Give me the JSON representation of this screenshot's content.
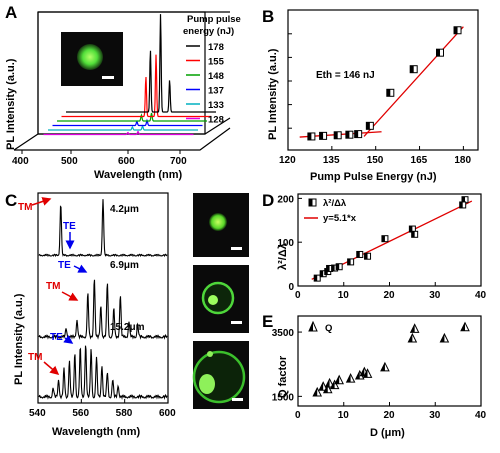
{
  "chart_data": [
    {
      "panel": "A",
      "type": "line",
      "xlabel": "Wavelength (nm)",
      "ylabel": "PL Intensity (a.u.)",
      "xlim": [
        400,
        700
      ],
      "xticks": [
        "400",
        "500",
        "600",
        "700"
      ],
      "legend_title": "Pump pulse energy (nJ)",
      "legend_placement": "top-right",
      "series": [
        {
          "name": "178",
          "color": "#000000",
          "peaks": [
            {
              "x": 592,
              "h": 0.62
            },
            {
              "x": 611,
              "h": 0.98
            },
            {
              "x": 628,
              "h": 0.32
            }
          ]
        },
        {
          "name": "155",
          "color": "#ff0000",
          "peaks": [
            {
              "x": 592,
              "h": 0.4
            },
            {
              "x": 611,
              "h": 0.62
            }
          ]
        },
        {
          "name": "148",
          "color": "#00a000",
          "peaks": [
            {
              "x": 592,
              "h": 0.06
            },
            {
              "x": 611,
              "h": 0.08
            }
          ]
        },
        {
          "name": "137",
          "color": "#0000ff",
          "peaks": [
            {
              "x": 592,
              "h": 0.04
            },
            {
              "x": 611,
              "h": 0.05
            }
          ]
        },
        {
          "name": "133",
          "color": "#00b0c0",
          "peaks": [
            {
              "x": 592,
              "h": 0.03
            },
            {
              "x": 611,
              "h": 0.04
            }
          ]
        },
        {
          "name": "128",
          "color": "#e000e0",
          "peaks": [
            {
              "x": 592,
              "h": 0.02
            },
            {
              "x": 611,
              "h": 0.03
            }
          ]
        }
      ]
    },
    {
      "panel": "B",
      "type": "scatter",
      "xlabel": "Pump Pulse Energy (nJ)",
      "ylabel": "PL Intensity (a.u.)",
      "xlim": [
        120,
        185
      ],
      "ylim": [
        0,
        1
      ],
      "xticks": [
        120,
        135,
        150,
        165,
        180
      ],
      "annotation": "Eth = 146 nJ",
      "points": [
        [
          128,
          0.03
        ],
        [
          132,
          0.035
        ],
        [
          137,
          0.04
        ],
        [
          141,
          0.045
        ],
        [
          144,
          0.05
        ],
        [
          148,
          0.12
        ],
        [
          155,
          0.4
        ],
        [
          163,
          0.6
        ],
        [
          172,
          0.74
        ],
        [
          178,
          0.93
        ]
      ],
      "fit_below": [
        [
          124,
          0.025
        ],
        [
          152,
          0.07
        ]
      ],
      "fit_above": [
        [
          146,
          0.03
        ],
        [
          180,
          0.96
        ]
      ]
    },
    {
      "panel": "C",
      "type": "line",
      "xlabel": "Wavelength (nm)",
      "ylabel": "PL Intensity (a.u.)",
      "xlim": [
        540,
        600
      ],
      "xticks": [
        540,
        560,
        580,
        600
      ],
      "series": [
        {
          "name": "4.2μm",
          "peaks": [
            {
              "x": 550.5,
              "h": 0.9
            },
            {
              "x": 570,
              "h": 0.97
            }
          ]
        },
        {
          "name": "6.9μm",
          "peaks": [
            {
              "x": 553,
              "h": 0.12
            },
            {
              "x": 558,
              "h": 0.25
            },
            {
              "x": 563,
              "h": 0.62
            },
            {
              "x": 566,
              "h": 0.85
            },
            {
              "x": 569,
              "h": 0.45
            },
            {
              "x": 572,
              "h": 0.78
            },
            {
              "x": 575,
              "h": 0.4
            },
            {
              "x": 578,
              "h": 0.6
            },
            {
              "x": 582,
              "h": 0.22
            },
            {
              "x": 586,
              "h": 0.18
            }
          ]
        },
        {
          "name": "15.2μm",
          "peaks": [
            {
              "x": 547,
              "h": 0.15
            },
            {
              "x": 549.5,
              "h": 0.3
            },
            {
              "x": 552,
              "h": 0.48
            },
            {
              "x": 554.5,
              "h": 0.62
            },
            {
              "x": 557,
              "h": 0.75
            },
            {
              "x": 559.5,
              "h": 0.85
            },
            {
              "x": 562,
              "h": 0.92
            },
            {
              "x": 564.5,
              "h": 0.82
            },
            {
              "x": 567,
              "h": 0.68
            },
            {
              "x": 569.5,
              "h": 0.55
            },
            {
              "x": 572,
              "h": 0.42
            },
            {
              "x": 574.5,
              "h": 0.3
            },
            {
              "x": 577,
              "h": 0.2
            }
          ]
        }
      ],
      "annotations": [
        "TM",
        "TE",
        "TE",
        "TM",
        "TE",
        "TM"
      ]
    },
    {
      "panel": "D",
      "type": "scatter",
      "xlabel": "",
      "ylabel": "λ²/Δλ",
      "xlim": [
        0,
        40
      ],
      "ylim": [
        0,
        210
      ],
      "xticks": [
        0,
        10,
        20,
        30,
        40
      ],
      "yticks": [
        0,
        100,
        200
      ],
      "legend": [
        "λ²/Δλ",
        "y=5.1*x"
      ],
      "legend_placement": "top-left",
      "points": [
        [
          4.2,
          18
        ],
        [
          5.5,
          28
        ],
        [
          6.5,
          33
        ],
        [
          6.9,
          40
        ],
        [
          8.0,
          41
        ],
        [
          9.0,
          44
        ],
        [
          11.5,
          55
        ],
        [
          13.5,
          72
        ],
        [
          15.2,
          68
        ],
        [
          19.0,
          108
        ],
        [
          25.0,
          130
        ],
        [
          25.5,
          118
        ],
        [
          36.5,
          197
        ],
        [
          36.0,
          185
        ]
      ],
      "fit": {
        "slope": 5.1,
        "x_range": [
          3,
          38
        ]
      }
    },
    {
      "panel": "E",
      "type": "scatter",
      "xlabel": "D (μm)",
      "ylabel": "Q factor",
      "xlim": [
        0,
        40
      ],
      "ylim": [
        1200,
        4000
      ],
      "xticks": [
        0,
        10,
        20,
        30,
        40
      ],
      "yticks": [
        1500,
        3500
      ],
      "legend": [
        "Q"
      ],
      "legend_placement": "top-left",
      "points": [
        [
          4.2,
          1620
        ],
        [
          5.5,
          1800
        ],
        [
          6.5,
          1720
        ],
        [
          6.9,
          1900
        ],
        [
          8.0,
          1850
        ],
        [
          9.0,
          2000
        ],
        [
          11.5,
          2050
        ],
        [
          13.5,
          2150
        ],
        [
          14.5,
          2250
        ],
        [
          15.2,
          2200
        ],
        [
          19.0,
          2400
        ],
        [
          25.0,
          3300
        ],
        [
          25.5,
          3600
        ],
        [
          32.0,
          3300
        ],
        [
          36.5,
          3650
        ]
      ]
    }
  ],
  "panels": {
    "A": {
      "letter": "A",
      "scale_bar": true
    },
    "B": {
      "letter": "B"
    },
    "C": {
      "letter": "C",
      "images": 3
    },
    "D": {
      "letter": "D"
    },
    "E": {
      "letter": "E"
    }
  },
  "colors": {
    "fit_line": "#e00000",
    "arrow_tm": "#e00000",
    "arrow_te": "#0000ee",
    "micro_green": "#3bd43b"
  }
}
